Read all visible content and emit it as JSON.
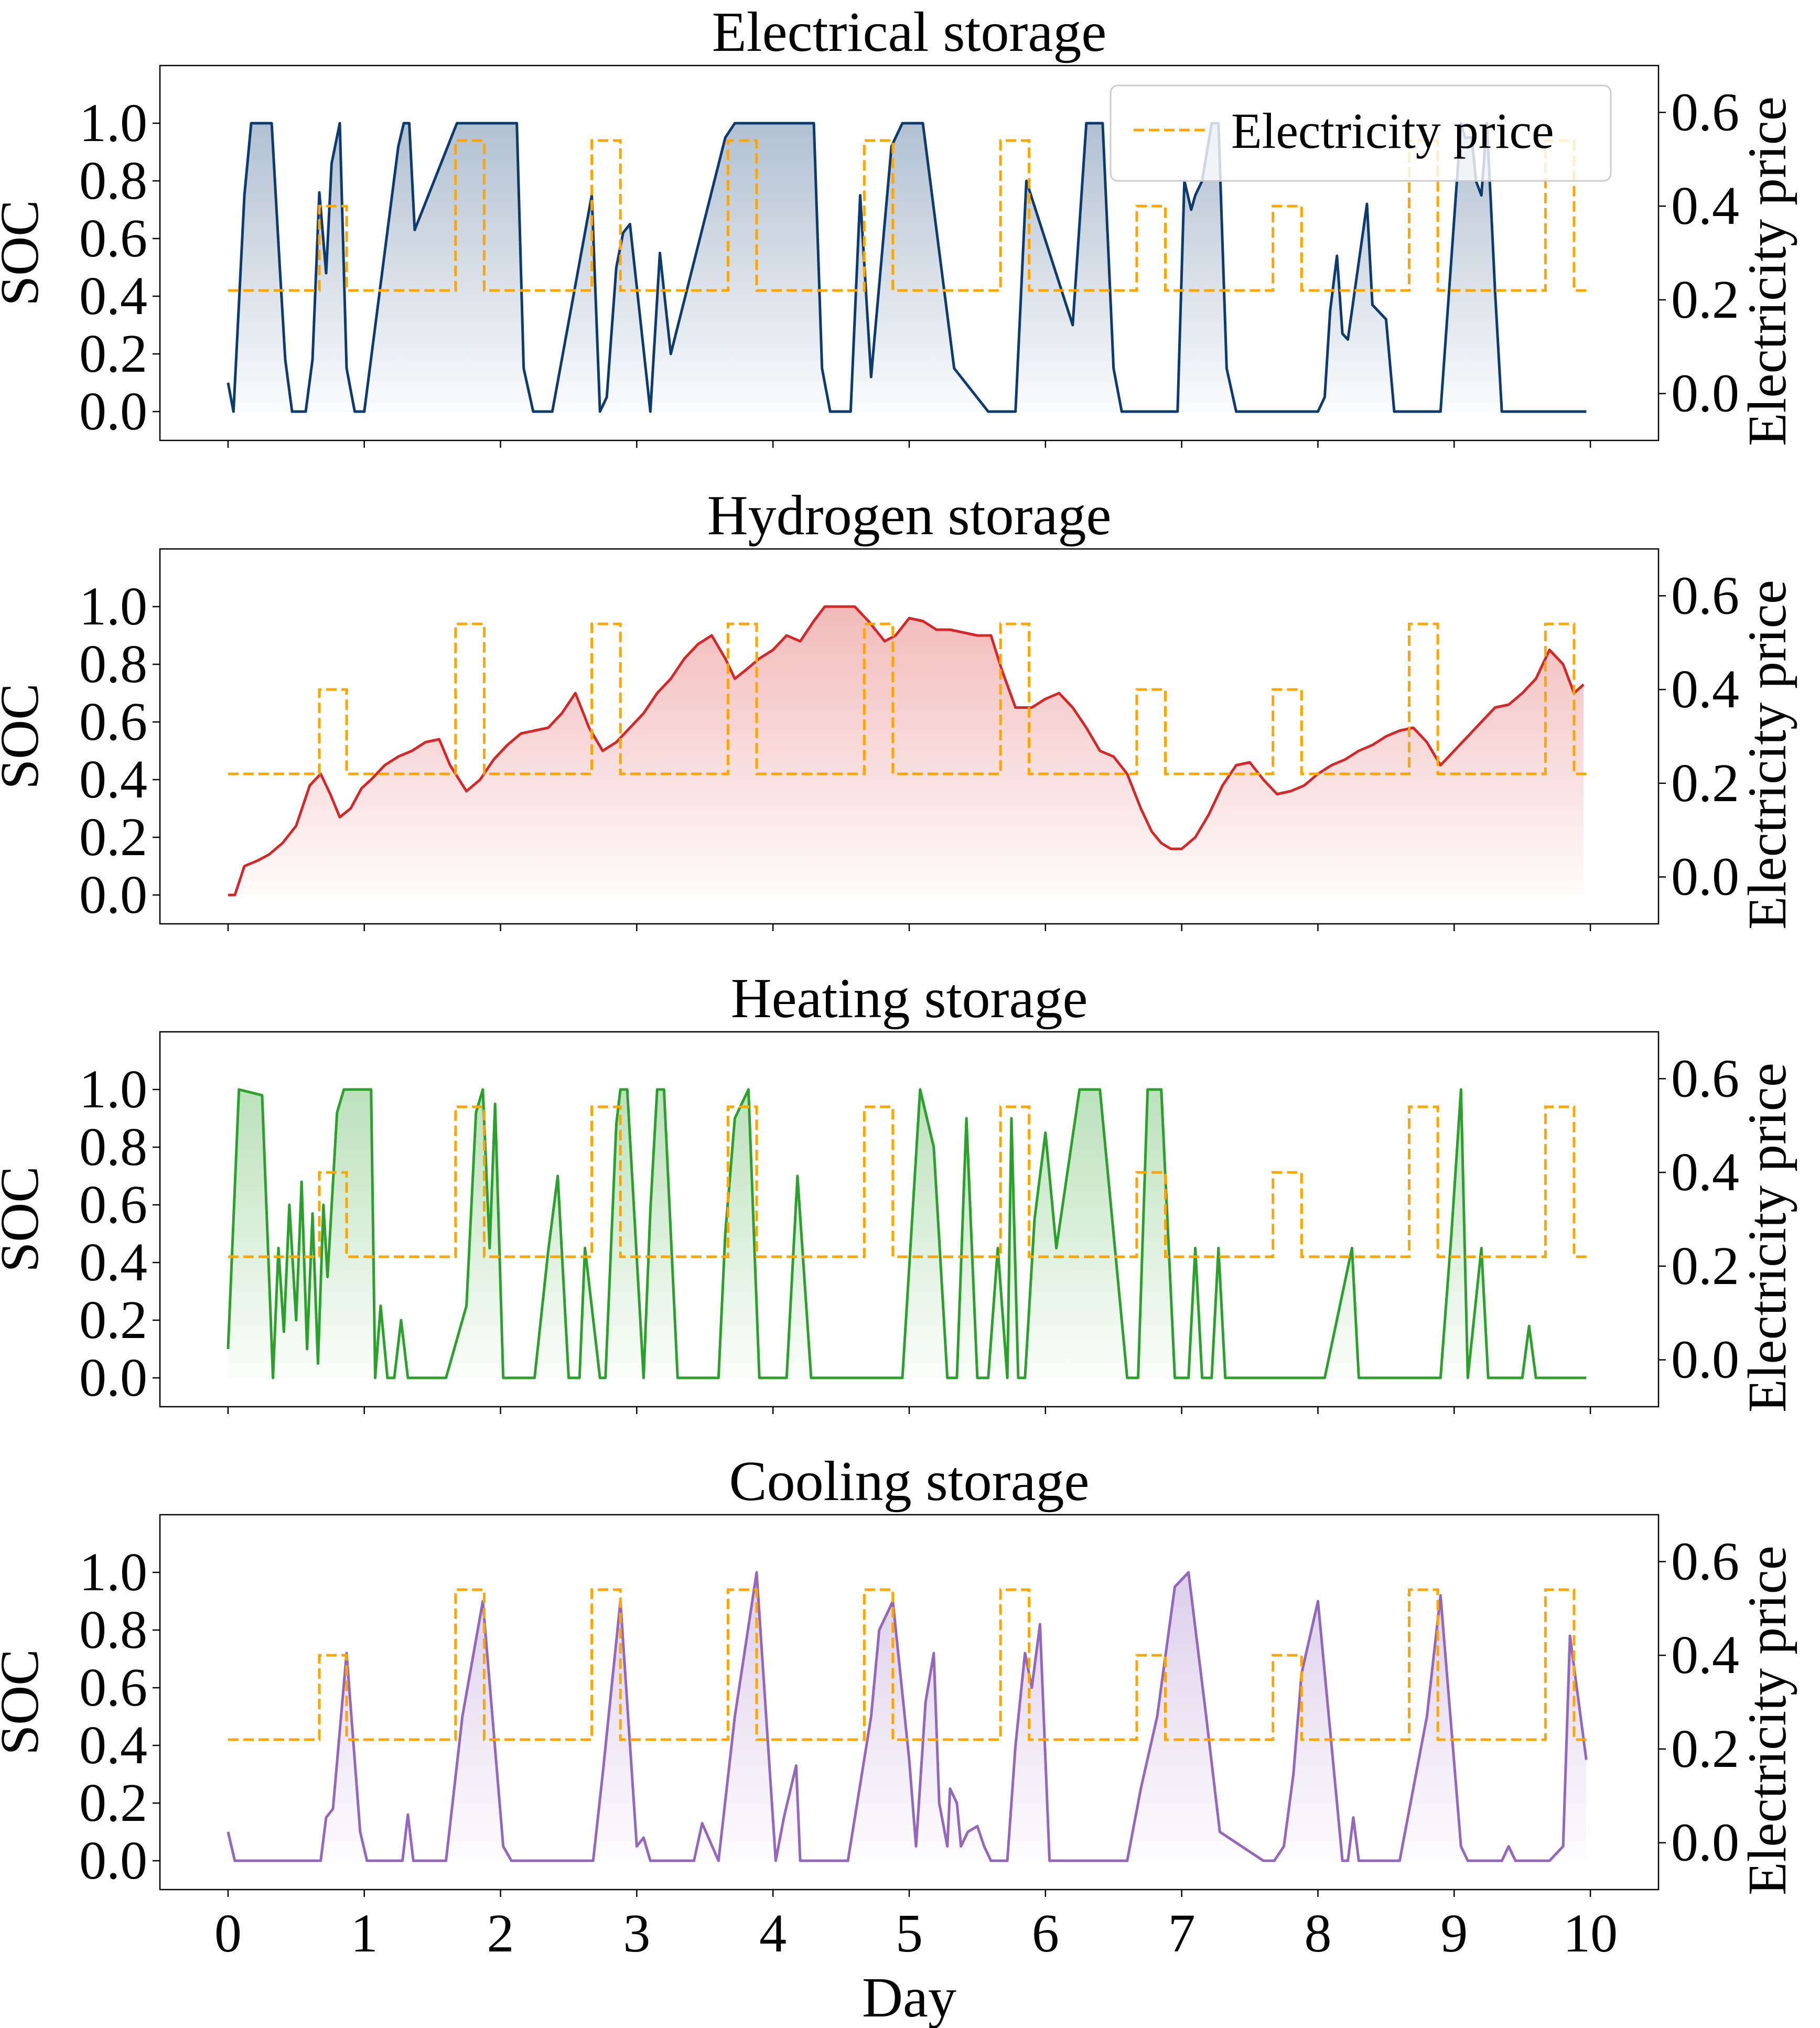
{
  "chart_data": [
    {
      "type": "line",
      "title": "Electrical storage",
      "xlabel": "",
      "ylabel": "SOC",
      "ylabel_right": "Electricity price",
      "xlim": [
        -0.5,
        10.5
      ],
      "ylim": [
        -0.1,
        1.2
      ],
      "ylim_right": [
        -0.1,
        0.7
      ],
      "yticks": [
        "0.0",
        "0.2",
        "0.4",
        "0.6",
        "0.8",
        "1.0"
      ],
      "yticks_right": [
        "0.0",
        "0.2",
        "0.4",
        "0.6"
      ],
      "color": "#0d3b6e",
      "fill": true,
      "legend": [
        "Electricity price"
      ],
      "soc_series": {
        "x": [
          0,
          0.04,
          0.12,
          0.17,
          0.32,
          0.38,
          0.42,
          0.47,
          0.57,
          0.62,
          0.67,
          0.72,
          0.76,
          0.82,
          0.87,
          0.93,
          1.0,
          1.25,
          1.29,
          1.33,
          1.37,
          1.68,
          1.75,
          1.82,
          2.12,
          2.17,
          2.24,
          2.28,
          2.34,
          2.38,
          2.67,
          2.73,
          2.78,
          2.85,
          2.9,
          2.95,
          3.1,
          3.17,
          3.25,
          3.65,
          3.72,
          3.78,
          4.3,
          4.36,
          4.42,
          4.47,
          4.51,
          4.57,
          4.64,
          4.72,
          4.87,
          4.95,
          5.02,
          5.1,
          5.33,
          5.58,
          5.65,
          5.72,
          5.78,
          5.86,
          6.2,
          6.3,
          6.38,
          6.42,
          6.5,
          6.56,
          6.72,
          6.8,
          6.85,
          6.88,
          6.93,
          6.97,
          7.02,
          7.07,
          7.1,
          7.15,
          7.22,
          7.27,
          7.33,
          7.4,
          7.55,
          7.62,
          7.68,
          7.74,
          7.8,
          7.93,
          8.0,
          8.05,
          8.09,
          8.14,
          8.18,
          8.22,
          8.36,
          8.4,
          8.5,
          8.56,
          8.6,
          8.64,
          8.75,
          8.9,
          9.05,
          9.08,
          9.13,
          9.16,
          9.2,
          9.24,
          9.27,
          9.3,
          9.35,
          9.41,
          9.47,
          9.53,
          9.6,
          9.75,
          9.83,
          9.87,
          9.92,
          9.97
        ],
        "y": [
          0.1,
          0.0,
          0.75,
          1.0,
          1.0,
          0.5,
          0.18,
          0.0,
          0.0,
          0.18,
          0.76,
          0.48,
          0.86,
          1.0,
          0.15,
          0.0,
          0.0,
          0.92,
          1.0,
          1.0,
          0.63,
          1.0,
          1.0,
          1.0,
          1.0,
          0.15,
          0.0,
          0.0,
          0.0,
          0.0,
          0.75,
          0.0,
          0.05,
          0.5,
          0.62,
          0.65,
          0.0,
          0.55,
          0.2,
          0.95,
          1.0,
          1.0,
          1.0,
          0.15,
          0.0,
          0.0,
          0.0,
          0.0,
          0.75,
          0.12,
          0.92,
          1.0,
          1.0,
          1.0,
          0.15,
          0.0,
          0.0,
          0.0,
          0.0,
          0.8,
          0.3,
          1.0,
          1.0,
          1.0,
          0.15,
          0.0,
          0.0,
          0.0,
          0.0,
          0.0,
          0.0,
          0.0,
          0.8,
          0.7,
          0.75,
          0.8,
          1.0,
          1.0,
          0.15,
          0.0,
          0.0,
          0.0,
          0.0,
          0.0,
          0.0,
          0.0,
          0.0,
          0.05,
          0.35,
          0.54,
          0.27,
          0.25,
          0.72,
          0.37,
          0.32,
          0.0,
          0.0,
          0.0,
          0.0,
          0.0,
          1.0,
          0.95,
          0.95,
          0.8,
          0.75,
          1.0,
          0.72,
          0.42,
          0.0,
          0.0,
          0.0,
          0.0,
          0.0,
          0.0,
          0.0,
          0.0,
          0.0,
          0.0
        ]
      }
    },
    {
      "type": "line",
      "title": "Hydrogen storage",
      "xlabel": "",
      "ylabel": "SOC",
      "ylabel_right": "Electricity price",
      "xlim": [
        -0.5,
        10.5
      ],
      "ylim": [
        -0.1,
        1.2
      ],
      "ylim_right": [
        -0.1,
        0.7
      ],
      "yticks": [
        "0.0",
        "0.2",
        "0.4",
        "0.6",
        "0.8",
        "1.0"
      ],
      "yticks_right": [
        "0.0",
        "0.2",
        "0.4",
        "0.6"
      ],
      "color": "#d62728",
      "fill": true,
      "soc_series": {
        "x": [
          0,
          0.05,
          0.12,
          0.22,
          0.3,
          0.4,
          0.5,
          0.6,
          0.68,
          0.75,
          0.82,
          0.9,
          0.98,
          1.05,
          1.15,
          1.25,
          1.35,
          1.45,
          1.55,
          1.63,
          1.75,
          1.85,
          1.95,
          2.05,
          2.15,
          2.25,
          2.35,
          2.45,
          2.55,
          2.65,
          2.75,
          2.85,
          2.95,
          3.05,
          3.15,
          3.25,
          3.35,
          3.45,
          3.55,
          3.65,
          3.72,
          3.8,
          3.9,
          4.0,
          4.1,
          4.2,
          4.3,
          4.38,
          4.5,
          4.6,
          4.7,
          4.82,
          4.9,
          5.0,
          5.1,
          5.2,
          5.3,
          5.4,
          5.5,
          5.6,
          5.68,
          5.78,
          5.9,
          6.0,
          6.1,
          6.2,
          6.3,
          6.4,
          6.5,
          6.6,
          6.7,
          6.78,
          6.85,
          6.92,
          7.0,
          7.1,
          7.2,
          7.3,
          7.4,
          7.5,
          7.6,
          7.7,
          7.8,
          7.9,
          8.0,
          8.1,
          8.2,
          8.3,
          8.4,
          8.5,
          8.6,
          8.7,
          8.8,
          8.9,
          9.0,
          9.1,
          9.2,
          9.3,
          9.4,
          9.5,
          9.6,
          9.7,
          9.8,
          9.88,
          9.95
        ],
        "y": [
          0.0,
          0.0,
          0.1,
          0.12,
          0.14,
          0.18,
          0.24,
          0.38,
          0.42,
          0.35,
          0.27,
          0.3,
          0.37,
          0.4,
          0.45,
          0.48,
          0.5,
          0.53,
          0.54,
          0.45,
          0.36,
          0.4,
          0.47,
          0.52,
          0.56,
          0.57,
          0.58,
          0.63,
          0.7,
          0.58,
          0.5,
          0.53,
          0.58,
          0.63,
          0.7,
          0.75,
          0.82,
          0.87,
          0.9,
          0.82,
          0.75,
          0.78,
          0.82,
          0.85,
          0.9,
          0.88,
          0.95,
          1.0,
          1.0,
          1.0,
          0.95,
          0.88,
          0.9,
          0.96,
          0.95,
          0.92,
          0.92,
          0.91,
          0.9,
          0.9,
          0.78,
          0.65,
          0.65,
          0.68,
          0.7,
          0.65,
          0.58,
          0.5,
          0.48,
          0.42,
          0.3,
          0.22,
          0.18,
          0.16,
          0.16,
          0.2,
          0.28,
          0.38,
          0.45,
          0.46,
          0.4,
          0.35,
          0.36,
          0.38,
          0.42,
          0.45,
          0.47,
          0.5,
          0.52,
          0.55,
          0.57,
          0.58,
          0.53,
          0.45,
          0.5,
          0.55,
          0.6,
          0.65,
          0.66,
          0.7,
          0.75,
          0.85,
          0.8,
          0.7,
          0.73
        ]
      }
    },
    {
      "type": "line",
      "title": "Heating storage",
      "xlabel": "",
      "ylabel": "SOC",
      "ylabel_right": "Electricity price",
      "xlim": [
        -0.5,
        10.5
      ],
      "ylim": [
        -0.1,
        1.2
      ],
      "ylim_right": [
        -0.1,
        0.7
      ],
      "yticks": [
        "0.0",
        "0.2",
        "0.4",
        "0.6",
        "0.8",
        "1.0"
      ],
      "yticks_right": [
        "0.0",
        "0.2",
        "0.4",
        "0.6"
      ],
      "color": "#2ca02c",
      "fill": true,
      "soc_series": {
        "x": [
          0,
          0.08,
          0.25,
          0.33,
          0.37,
          0.41,
          0.45,
          0.5,
          0.54,
          0.58,
          0.62,
          0.66,
          0.7,
          0.73,
          0.8,
          0.85,
          1.05,
          1.08,
          1.12,
          1.17,
          1.22,
          1.27,
          1.32,
          1.6,
          1.75,
          1.82,
          1.87,
          1.92,
          1.96,
          2.02,
          2.25,
          2.35,
          2.42,
          2.5,
          2.58,
          2.62,
          2.73,
          2.77,
          2.85,
          2.88,
          2.93,
          3.05,
          3.1,
          3.15,
          3.2,
          3.3,
          3.38,
          3.6,
          3.65,
          3.72,
          3.82,
          3.9,
          3.96,
          4.1,
          4.18,
          4.28,
          4.5,
          4.6,
          4.8,
          4.87,
          4.95,
          5.08,
          5.18,
          5.28,
          5.35,
          5.42,
          5.5,
          5.58,
          5.65,
          5.72,
          5.75,
          5.8,
          5.85,
          5.92,
          6.0,
          6.08,
          6.25,
          6.35,
          6.4,
          6.6,
          6.68,
          6.75,
          6.85,
          6.95,
          7.05,
          7.1,
          7.15,
          7.22,
          7.27,
          7.32,
          7.65,
          7.75,
          7.85,
          7.95,
          8.05,
          8.25,
          8.3,
          8.35,
          8.7,
          8.8,
          8.9,
          8.98,
          9.05,
          9.1,
          9.2,
          9.25,
          9.4,
          9.5,
          9.55,
          9.6,
          9.65,
          9.7,
          9.8,
          9.9,
          9.97
        ],
        "y": [
          0.1,
          1.0,
          0.98,
          0.0,
          0.45,
          0.16,
          0.6,
          0.2,
          0.68,
          0.1,
          0.57,
          0.05,
          0.6,
          0.35,
          0.92,
          1.0,
          1.0,
          0.0,
          0.25,
          0.0,
          0.0,
          0.2,
          0.0,
          0.0,
          0.25,
          0.92,
          1.0,
          0.45,
          0.95,
          0.0,
          0.0,
          0.44,
          0.7,
          0.0,
          0.0,
          0.45,
          0.0,
          0.0,
          0.88,
          1.0,
          1.0,
          0.0,
          0.58,
          1.0,
          1.0,
          0.0,
          0.0,
          0.0,
          0.5,
          0.9,
          1.0,
          0.0,
          0.0,
          0.0,
          0.7,
          0.0,
          0.0,
          0.0,
          0.0,
          0.0,
          0.0,
          1.0,
          0.8,
          0.0,
          0.0,
          0.9,
          0.0,
          0.0,
          0.45,
          0.0,
          0.9,
          0.0,
          0.0,
          0.55,
          0.85,
          0.45,
          1.0,
          1.0,
          1.0,
          0.0,
          0.0,
          1.0,
          1.0,
          0.0,
          0.0,
          0.45,
          0.0,
          0.0,
          0.45,
          0.0,
          0.0,
          0.0,
          0.0,
          0.0,
          0.0,
          0.45,
          0.0,
          0.0,
          0.0,
          0.0,
          0.0,
          0.5,
          1.0,
          0.0,
          0.45,
          0.0,
          0.0,
          0.0,
          0.18,
          0.0,
          0.0,
          0.0,
          0.0,
          0.0,
          0.0
        ]
      }
    },
    {
      "type": "line",
      "title": "Cooling storage",
      "xlabel": "Day",
      "ylabel": "SOC",
      "ylabel_right": "Electricity price",
      "xlim": [
        -0.5,
        10.5
      ],
      "ylim": [
        -0.1,
        1.2
      ],
      "ylim_right": [
        -0.1,
        0.7
      ],
      "xticks": [
        "0",
        "1",
        "2",
        "3",
        "4",
        "5",
        "6",
        "7",
        "8",
        "9",
        "10"
      ],
      "yticks": [
        "0.0",
        "0.2",
        "0.4",
        "0.6",
        "0.8",
        "1.0"
      ],
      "yticks_right": [
        "0.0",
        "0.2",
        "0.4",
        "0.6"
      ],
      "color": "#9467bd",
      "fill": true,
      "soc_series": {
        "x": [
          0,
          0.05,
          0.68,
          0.72,
          0.77,
          0.87,
          0.97,
          1.02,
          1.08,
          1.28,
          1.32,
          1.36,
          1.6,
          1.72,
          1.87,
          2.02,
          2.08,
          2.68,
          2.75,
          2.88,
          3.0,
          3.05,
          3.1,
          3.25,
          3.42,
          3.48,
          3.6,
          3.72,
          3.88,
          4.02,
          4.08,
          4.17,
          4.2,
          4.3,
          4.4,
          4.55,
          4.72,
          4.78,
          4.88,
          5.0,
          5.05,
          5.12,
          5.18,
          5.22,
          5.28,
          5.3,
          5.35,
          5.38,
          5.43,
          5.5,
          5.55,
          5.6,
          5.72,
          5.78,
          5.85,
          5.9,
          5.96,
          6.03,
          6.1,
          6.25,
          6.6,
          6.7,
          6.82,
          6.95,
          7.05,
          7.18,
          7.28,
          7.6,
          7.68,
          7.75,
          7.82,
          7.88,
          8.0,
          8.18,
          8.22,
          8.26,
          8.3,
          8.6,
          8.8,
          8.9,
          9.05,
          9.1,
          9.35,
          9.4,
          9.45,
          9.7,
          9.8,
          9.85,
          9.97
        ],
        "y": [
          0.1,
          0.0,
          0.0,
          0.15,
          0.18,
          0.72,
          0.1,
          0.0,
          0.0,
          0.0,
          0.16,
          0.0,
          0.0,
          0.5,
          0.9,
          0.05,
          0.0,
          0.0,
          0.3,
          0.9,
          0.05,
          0.08,
          0.0,
          0.0,
          0.0,
          0.13,
          0.0,
          0.5,
          1.0,
          0.0,
          0.15,
          0.33,
          0.0,
          0.0,
          0.0,
          0.0,
          0.5,
          0.8,
          0.9,
          0.35,
          0.05,
          0.55,
          0.72,
          0.2,
          0.05,
          0.25,
          0.2,
          0.05,
          0.1,
          0.12,
          0.05,
          0.0,
          0.0,
          0.4,
          0.72,
          0.6,
          0.82,
          0.0,
          0.0,
          0.0,
          0.0,
          0.25,
          0.5,
          0.95,
          1.0,
          0.5,
          0.1,
          0.0,
          0.0,
          0.05,
          0.3,
          0.65,
          0.9,
          0.0,
          0.0,
          0.15,
          0.0,
          0.0,
          0.5,
          0.92,
          0.05,
          0.0,
          0.0,
          0.05,
          0.0,
          0.0,
          0.05,
          0.78,
          0.35
        ]
      }
    }
  ],
  "price_series": {
    "name": "Electricity price",
    "color": "#ffa500",
    "x": [
      0,
      0.67,
      0.67,
      0.87,
      0.87,
      1.67,
      1.67,
      1.88,
      1.88,
      2.67,
      2.67,
      2.88,
      2.88,
      3.67,
      3.67,
      3.88,
      3.88,
      4.67,
      4.67,
      4.88,
      4.88,
      5.67,
      5.67,
      5.88,
      5.88,
      6.67,
      6.67,
      6.88,
      6.88,
      7.67,
      7.67,
      7.88,
      7.88,
      8.67,
      8.67,
      8.88,
      8.88,
      9.67,
      9.67,
      9.88,
      9.88,
      10.0
    ],
    "y": [
      0.22,
      0.22,
      0.4,
      0.4,
      0.22,
      0.22,
      0.54,
      0.54,
      0.22,
      0.22,
      0.54,
      0.54,
      0.22,
      0.22,
      0.54,
      0.54,
      0.22,
      0.22,
      0.54,
      0.54,
      0.22,
      0.22,
      0.54,
      0.54,
      0.22,
      0.22,
      0.4,
      0.4,
      0.22,
      0.22,
      0.4,
      0.4,
      0.22,
      0.22,
      0.54,
      0.54,
      0.22,
      0.22,
      0.54,
      0.54,
      0.22,
      0.22
    ]
  }
}
